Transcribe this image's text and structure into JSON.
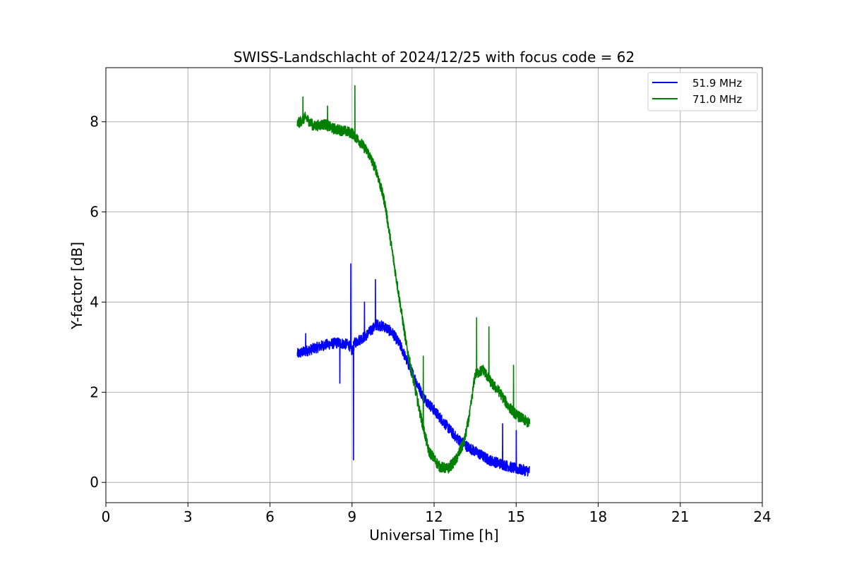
{
  "chart_data": {
    "type": "line",
    "title": "SWISS-Landschlacht of 2024/12/25 with focus code = 62",
    "xlabel": "Universal Time [h]",
    "ylabel": "Y-factor [dB]",
    "xlim": [
      0,
      24
    ],
    "ylim": [
      -0.45,
      9.2
    ],
    "x_ticks": [
      0,
      3,
      6,
      9,
      12,
      15,
      18,
      21,
      24
    ],
    "x_tick_labels": [
      "0",
      "3",
      "6",
      "9",
      "12",
      "15",
      "18",
      "21",
      "24"
    ],
    "y_ticks": [
      0,
      2,
      4,
      6,
      8
    ],
    "y_tick_labels": [
      "0",
      "2",
      "4",
      "6",
      "8"
    ],
    "grid": true,
    "legend_position": "top-right",
    "series": [
      {
        "name": "51.9 MHz",
        "color": "#0000ff",
        "noise": 0.12,
        "x": [
          7.0,
          7.5,
          8.0,
          8.5,
          8.9,
          9.0,
          9.1,
          9.5,
          9.9,
          10.2,
          10.5,
          10.8,
          11.0,
          11.3,
          11.6,
          12.0,
          12.4,
          12.8,
          13.2,
          13.6,
          14.0,
          14.5,
          15.0,
          15.5
        ],
        "y": [
          2.85,
          2.95,
          3.05,
          3.1,
          3.05,
          2.9,
          3.1,
          3.25,
          3.5,
          3.45,
          3.3,
          3.0,
          2.7,
          2.3,
          1.9,
          1.6,
          1.3,
          1.0,
          0.8,
          0.65,
          0.5,
          0.4,
          0.3,
          0.25
        ],
        "spikes": [
          {
            "x": 7.3,
            "y": 3.3
          },
          {
            "x": 8.55,
            "y": 2.2
          },
          {
            "x": 8.95,
            "y": 4.85
          },
          {
            "x": 9.05,
            "y": 0.5
          },
          {
            "x": 9.45,
            "y": 4.0
          },
          {
            "x": 9.85,
            "y": 4.5
          },
          {
            "x": 14.5,
            "y": 1.3
          },
          {
            "x": 15.0,
            "y": 1.15
          }
        ]
      },
      {
        "name": "71.0 MHz",
        "color": "#008000",
        "noise": 0.12,
        "x": [
          7.0,
          7.3,
          7.6,
          8.0,
          8.3,
          8.7,
          9.0,
          9.3,
          9.6,
          9.9,
          10.2,
          10.5,
          10.8,
          11.0,
          11.2,
          11.5,
          11.8,
          12.2,
          12.5,
          12.8,
          13.1,
          13.3,
          13.5,
          13.8,
          14.1,
          14.4,
          14.7,
          15.0,
          15.5
        ],
        "y": [
          7.95,
          8.1,
          7.9,
          7.95,
          7.85,
          7.8,
          7.75,
          7.55,
          7.3,
          6.9,
          6.2,
          5.0,
          3.8,
          3.0,
          2.4,
          1.5,
          0.7,
          0.35,
          0.3,
          0.5,
          0.9,
          1.5,
          2.4,
          2.5,
          2.2,
          2.0,
          1.7,
          1.5,
          1.3
        ],
        "spikes": [
          {
            "x": 7.2,
            "y": 8.55
          },
          {
            "x": 8.1,
            "y": 8.35
          },
          {
            "x": 9.1,
            "y": 8.8
          },
          {
            "x": 11.6,
            "y": 2.8
          },
          {
            "x": 13.55,
            "y": 3.65
          },
          {
            "x": 14.0,
            "y": 3.45
          },
          {
            "x": 14.9,
            "y": 2.6
          }
        ]
      }
    ]
  }
}
